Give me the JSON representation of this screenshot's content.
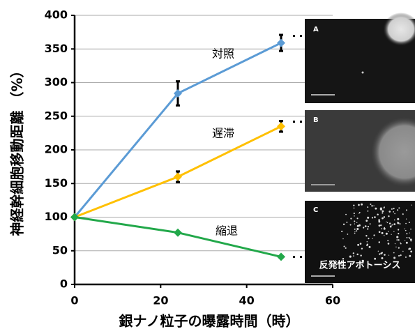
{
  "chart_data": {
    "type": "line",
    "y_label": "神経幹細胞移動距離 （%）",
    "x_label": "銀ナノ粒子の曝露時間（時）",
    "x": [
      0,
      24,
      48
    ],
    "xlim": [
      0,
      60
    ],
    "xticks": [
      0,
      20,
      40,
      60
    ],
    "ylim": [
      0,
      400
    ],
    "yticks": [
      0,
      50,
      100,
      150,
      200,
      250,
      300,
      350,
      400
    ],
    "grid": true,
    "series": [
      {
        "name": "対照",
        "color": "#5b9bd5",
        "values": [
          100,
          284,
          359
        ],
        "errors": [
          null,
          18,
          12
        ]
      },
      {
        "name": "遅滞",
        "color": "#ffc000",
        "values": [
          100,
          160,
          235
        ],
        "errors": [
          null,
          8,
          8
        ]
      },
      {
        "name": "縮退",
        "color": "#22a84a",
        "values": [
          100,
          77,
          41
        ]
      }
    ],
    "panels": [
      {
        "label": "A"
      },
      {
        "label": "B"
      },
      {
        "label": "C",
        "caption": "反発性アポトーシス"
      }
    ]
  }
}
